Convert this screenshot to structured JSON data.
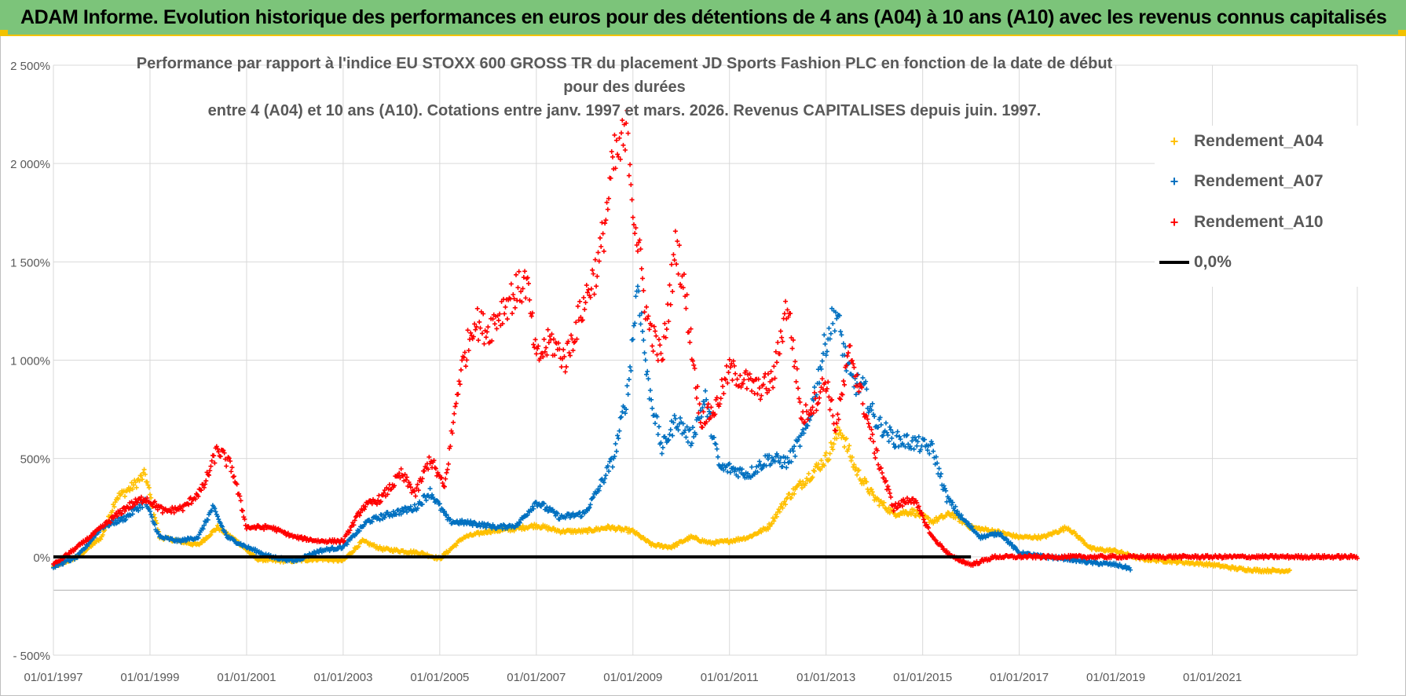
{
  "banner": {
    "title": "ADAM Informe. Evolution historique des performances en euros pour des détentions de 4 ans (A04) à 10 ans (A10) avec les revenus connus capitalisés"
  },
  "colors": {
    "banner_bg": "#7cc47a",
    "banner_accent": "#f2c200",
    "A04": "#ffc000",
    "A07": "#0070c0",
    "A10": "#ff0000",
    "zero_line": "#000000",
    "grid": "#d9d9d9",
    "text": "#595959"
  },
  "chart_data": {
    "type": "scatter",
    "title_line1": "Performance par rapport à l'indice EU STOXX 600 GROSS TR  du placement JD Sports Fashion PLC en fonction de la date de début pour des durées",
    "title_line2": "entre 4 (A04) et 10 ans (A10). Cotations entre janv. 1997 et mars. 2026. Revenus CAPITALISES depuis juin. 1997.",
    "xlabel": "",
    "ylabel": "",
    "xlim": [
      1997.0,
      2024.0
    ],
    "ylim": [
      -500,
      2500
    ],
    "y_ticks": [
      -500,
      0,
      500,
      1000,
      1500,
      2000,
      2500
    ],
    "y_tick_labels": [
      "- 500%",
      "0%",
      "500%",
      "1 000%",
      "1 500%",
      "2 000%",
      "2 500%"
    ],
    "x_ticks": [
      1997,
      1999,
      2001,
      2003,
      2005,
      2007,
      2009,
      2011,
      2013,
      2015,
      2017,
      2019,
      2021
    ],
    "x_tick_labels": [
      "01/01/1997",
      "01/01/1999",
      "01/01/2001",
      "01/01/2003",
      "01/01/2005",
      "01/01/2007",
      "01/01/2009",
      "01/01/2011",
      "01/01/2013",
      "01/01/2015",
      "01/01/2017",
      "01/01/2019",
      "01/01/2021"
    ],
    "legend_position": "top-right",
    "series": [
      {
        "name": "Rendement_A04",
        "x": [
          1997.0,
          1997.5,
          1998.0,
          1998.3,
          1998.6,
          1998.9,
          1999.2,
          1999.6,
          2000.0,
          2000.4,
          2000.8,
          2001.2,
          2001.6,
          2002.0,
          2002.5,
          2003.0,
          2003.4,
          2003.8,
          2004.2,
          2004.6,
          2005.0,
          2005.5,
          2006.0,
          2006.5,
          2007.0,
          2007.5,
          2008.0,
          2008.5,
          2009.0,
          2009.4,
          2009.8,
          2010.2,
          2010.6,
          2011.0,
          2011.4,
          2011.8,
          2012.2,
          2012.6,
          2013.0,
          2013.3,
          2013.6,
          2014.0,
          2014.4,
          2014.8,
          2015.2,
          2015.6,
          2016.0,
          2016.5,
          2017.0,
          2017.5,
          2018.0,
          2018.5,
          2019.0,
          2019.5,
          2020.0,
          2020.5,
          2021.0,
          2021.5,
          2022.0,
          2022.6
        ],
        "y": [
          -50,
          0,
          100,
          300,
          350,
          420,
          100,
          80,
          60,
          150,
          80,
          -10,
          -20,
          -20,
          -10,
          -20,
          80,
          40,
          30,
          20,
          -10,
          100,
          130,
          140,
          160,
          130,
          130,
          150,
          130,
          60,
          50,
          100,
          70,
          80,
          100,
          150,
          300,
          400,
          500,
          650,
          450,
          300,
          220,
          230,
          180,
          220,
          150,
          130,
          100,
          100,
          150,
          40,
          30,
          -10,
          -20,
          -30,
          -40,
          -60,
          -70,
          -70
        ]
      },
      {
        "name": "Rendement_A07",
        "x": [
          1997.0,
          1997.5,
          1998.0,
          1998.5,
          1998.9,
          1999.2,
          1999.6,
          2000.0,
          2000.3,
          2000.6,
          2001.0,
          2001.5,
          2002.0,
          2002.5,
          2003.0,
          2003.5,
          2004.0,
          2004.5,
          2004.8,
          2005.2,
          2005.7,
          2006.2,
          2006.6,
          2007.0,
          2007.5,
          2008.0,
          2008.3,
          2008.6,
          2008.9,
          2009.1,
          2009.3,
          2009.6,
          2009.9,
          2010.2,
          2010.5,
          2010.8,
          2011.0,
          2011.4,
          2011.8,
          2012.2,
          2012.6,
          2013.0,
          2013.2,
          2013.5,
          2013.8,
          2014.0,
          2014.4,
          2014.8,
          2015.2,
          2015.5,
          2015.8,
          2016.2,
          2016.6,
          2017.0,
          2017.5,
          2018.0,
          2018.5,
          2019.0,
          2019.3
        ],
        "y": [
          -50,
          0,
          150,
          200,
          280,
          100,
          80,
          100,
          250,
          100,
          50,
          0,
          -20,
          30,
          50,
          180,
          220,
          250,
          330,
          180,
          170,
          150,
          160,
          280,
          200,
          220,
          350,
          500,
          850,
          1400,
          900,
          550,
          700,
          600,
          800,
          450,
          450,
          420,
          500,
          480,
          650,
          1100,
          1250,
          900,
          850,
          700,
          600,
          580,
          550,
          300,
          200,
          100,
          120,
          20,
          0,
          -10,
          -30,
          -40,
          -60
        ]
      },
      {
        "name": "Rendement_A10",
        "x": [
          1997.0,
          1997.5,
          1998.0,
          1998.5,
          1998.9,
          1999.3,
          1999.7,
          2000.1,
          2000.4,
          2000.7,
          2001.0,
          2001.5,
          2002.0,
          2002.5,
          2003.0,
          2003.4,
          2003.8,
          2004.2,
          2004.5,
          2004.8,
          2005.1,
          2005.4,
          2005.7,
          2006.0,
          2006.4,
          2006.8,
          2007.0,
          2007.3,
          2007.6,
          2008.0,
          2008.3,
          2008.6,
          2008.9,
          2009.0,
          2009.3,
          2009.6,
          2009.9,
          2010.1,
          2010.4,
          2010.7,
          2011.0,
          2011.3,
          2011.6,
          2011.9,
          2012.2,
          2012.5,
          2012.8,
          2013.0,
          2013.2,
          2013.5,
          2013.8,
          2014.0,
          2014.4,
          2014.8,
          2015.2,
          2015.6,
          2016.0,
          2016.5,
          2017.0,
          2018.0,
          2019.0,
          2020.0,
          2021.0,
          2022.0,
          2023.0,
          2024.0
        ],
        "y": [
          -40,
          50,
          150,
          250,
          300,
          230,
          250,
          350,
          550,
          450,
          150,
          150,
          100,
          80,
          80,
          250,
          300,
          420,
          320,
          500,
          350,
          900,
          1200,
          1150,
          1300,
          1400,
          1000,
          1100,
          1000,
          1300,
          1500,
          2000,
          2150,
          1800,
          1200,
          1000,
          1600,
          1300,
          700,
          750,
          950,
          900,
          850,
          900,
          1300,
          700,
          800,
          900,
          650,
          1050,
          750,
          550,
          250,
          300,
          100,
          0,
          -40,
          0,
          0,
          0,
          0,
          0,
          0,
          0,
          0,
          0
        ]
      },
      {
        "name": "0,0%",
        "x": [
          1997.0,
          2016.0
        ],
        "y": [
          0,
          0
        ]
      }
    ]
  }
}
